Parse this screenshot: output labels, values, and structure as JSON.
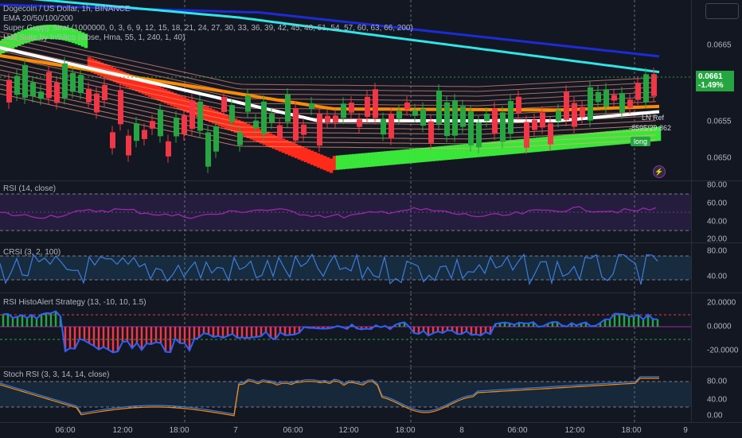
{
  "main_legend": {
    "title": "Dogecoin / US Dollar, 1h, BINANCE",
    "ema": "EMA 20/50/100/200",
    "guppy": "Super Guppy Strat (1000000, 0, 3, 6, 9, 12, 15, 18, 21, 24, 27, 30, 33, 36, 39, 42, 45, 48, 51, 54, 57, 60, 63, 66, 200)",
    "hull": "Hull Suite by InSilico (close, Hma, 55, 1, 240, 1, 40)"
  },
  "price_axis": [
    "0.0665",
    "0.0655",
    "0.0650"
  ],
  "current_price": {
    "value": "0.0661",
    "change": "-1.49%"
  },
  "signals": {
    "short_label": "LN Ref",
    "order_label": "-8595/29.862",
    "long_label": "long"
  },
  "panes": [
    {
      "id": "rsi",
      "title": "RSI (14, close)",
      "axis": [
        "80.00",
        "60.00",
        "40.00",
        "20.00"
      ]
    },
    {
      "id": "crsi",
      "title": "CRSI (3, 2, 100)",
      "axis": [
        "80.00",
        "40.00"
      ]
    },
    {
      "id": "histo",
      "title": "RSI HistoAlert Strategy (13, -10, 10, 1.5)",
      "axis": [
        "20.0000",
        "0.0000",
        "-20.0000"
      ]
    },
    {
      "id": "stoch",
      "title": "Stoch RSI (3, 3, 14, 14, close)",
      "axis": [
        "80.00",
        "40.00",
        "0.00"
      ]
    }
  ],
  "time_axis": [
    "06:00",
    "12:00",
    "18:00",
    "7",
    "06:00",
    "12:00",
    "18:00",
    "8",
    "06:00",
    "12:00",
    "18:00",
    "9"
  ],
  "colors": {
    "bull": "#26a641",
    "bear": "#f23645",
    "ema200": "#1c2bd6",
    "ema100": "#2ee6e6",
    "ema50": "#ff8c00",
    "ema20": "#ffffff",
    "hull_bull": "#39e639",
    "hull_bear": "#ff2a1a",
    "rsi": "#9c27b0",
    "crsi": "#3d7be0",
    "stoch_k": "#3d7be0",
    "stoch_d": "#ff8c00"
  }
}
